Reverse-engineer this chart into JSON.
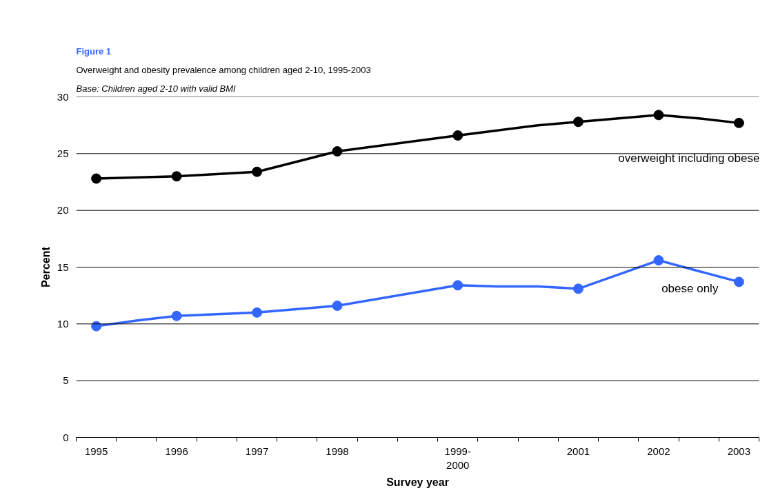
{
  "chart_data": {
    "type": "line",
    "title": "Figure 1",
    "subtitle": "Overweight and obesity prevalence among children aged 2-10, 1995-2003",
    "annotations": [
      "Base: Children aged 2-10 with valid BMI"
    ],
    "xlabel": "Survey year",
    "ylabel": "Percent",
    "categories": [
      "1995",
      null,
      "1996",
      null,
      "1997",
      null,
      "1998",
      null,
      null,
      "1999-2000",
      null,
      null,
      "2001",
      null,
      "2002",
      null,
      "2003"
    ],
    "series": [
      {
        "name": "overweight including obese",
        "color": "#000000",
        "values": [
          22.8,
          null,
          23.0,
          null,
          23.4,
          null,
          25.2,
          null,
          null,
          26.6,
          null,
          27.5,
          27.8,
          null,
          28.4,
          28.1,
          27.7
        ]
      },
      {
        "name": "obese only",
        "color": "#3366ff",
        "values": [
          9.8,
          10.3,
          10.7,
          null,
          11.0,
          null,
          11.6,
          null,
          null,
          13.4,
          13.3,
          13.3,
          13.1,
          null,
          15.6,
          null,
          13.7
        ]
      }
    ],
    "ylim": [
      0,
      30
    ],
    "yticks": [
      0,
      5,
      10,
      15,
      20,
      25,
      30
    ],
    "grid": "y",
    "marker": "circle",
    "line_style": "solid"
  }
}
